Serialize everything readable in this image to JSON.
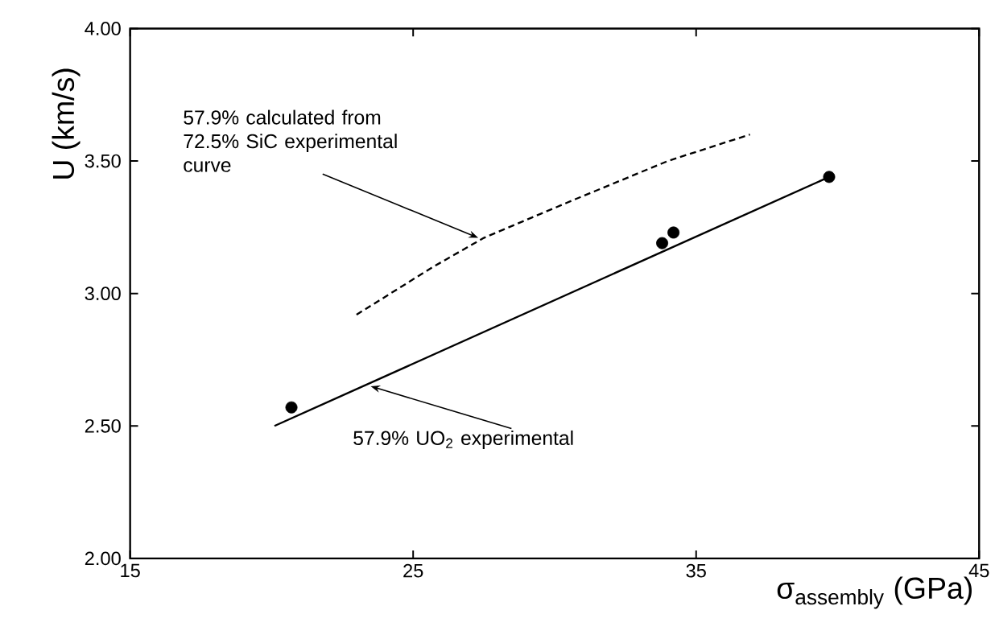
{
  "chart_data": {
    "type": "line",
    "xlabel": "σ$_{assembly}$ (GPa)",
    "ylabel": "U (km/s)",
    "xlim": [
      15,
      45
    ],
    "ylim": [
      2.0,
      4.0
    ],
    "xticks": [
      15,
      25,
      35,
      45
    ],
    "yticks": [
      {
        "value": 2.0,
        "label": "2.00"
      },
      {
        "value": 2.5,
        "label": "2.50"
      },
      {
        "value": 3.0,
        "label": "3.00"
      },
      {
        "value": 3.5,
        "label": "3.50"
      },
      {
        "value": 4.0,
        "label": "4.00"
      }
    ],
    "grid": false,
    "marker": "circle",
    "series": [
      {
        "type": "scatter",
        "x": [
          20.7,
          33.8,
          34.2,
          39.7
        ],
        "values": [
          2.57,
          3.19,
          3.23,
          3.44
        ],
        "color": "#000000"
      },
      {
        "x": [
          20.1,
          39.7
        ],
        "values": [
          2.5,
          3.44
        ],
        "color": "#000000",
        "line_style": "solid",
        "marker": "none"
      },
      {
        "x": [
          23.0,
          25.7,
          27.5,
          30.6,
          34.0,
          36.9
        ],
        "values": [
          2.92,
          3.1,
          3.21,
          3.35,
          3.5,
          3.6
        ],
        "color": "#000000",
        "line_style": "dashed",
        "marker": "none"
      }
    ],
    "annotations": [
      {
        "text": "57.9% calculated from 72.5% SiC experimental curve",
        "x": 27.3,
        "y": 3.21
      },
      {
        "text": "57.9% UO$_{2}$ experimental",
        "x": 23.5,
        "y": 2.65
      }
    ]
  }
}
